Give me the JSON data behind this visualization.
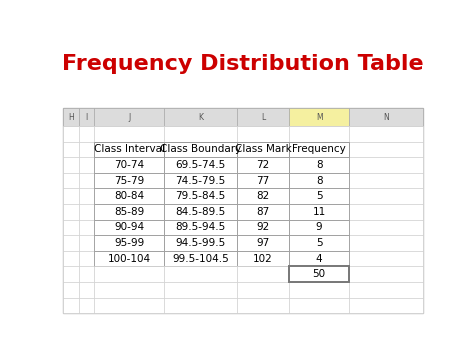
{
  "title": "Frequency Distribution Table",
  "title_color": "#cc0000",
  "title_fontsize": 16,
  "title_fontweight": "bold",
  "background_color": "#ffffff",
  "spreadsheet_bg": "#ebebeb",
  "col_headers": [
    "Class Interval",
    "Class Boundary",
    "Class Mark",
    "Frequency"
  ],
  "rows": [
    [
      "70-74",
      "69.5-74.5",
      "72",
      "8"
    ],
    [
      "75-79",
      "74.5-79.5",
      "77",
      "8"
    ],
    [
      "80-84",
      "79.5-84.5",
      "82",
      "5"
    ],
    [
      "85-89",
      "84.5-89.5",
      "87",
      "11"
    ],
    [
      "90-94",
      "89.5-94.5",
      "92",
      "9"
    ],
    [
      "95-99",
      "94.5-99.5",
      "97",
      "5"
    ],
    [
      "100-104",
      "99.5-104.5",
      "102",
      "4"
    ]
  ],
  "total": "50",
  "last_col_header_bg": "#f5f0a0",
  "spreadsheet_header_bg": "#dcdcdc",
  "text_color": "#000000",
  "col_letters": [
    "H",
    "I",
    "J",
    "K",
    "L",
    "M",
    "N"
  ],
  "table_cell_fontsize": 7.5,
  "header_cell_fontsize": 7.5,
  "col_letter_fontsize": 5.5
}
